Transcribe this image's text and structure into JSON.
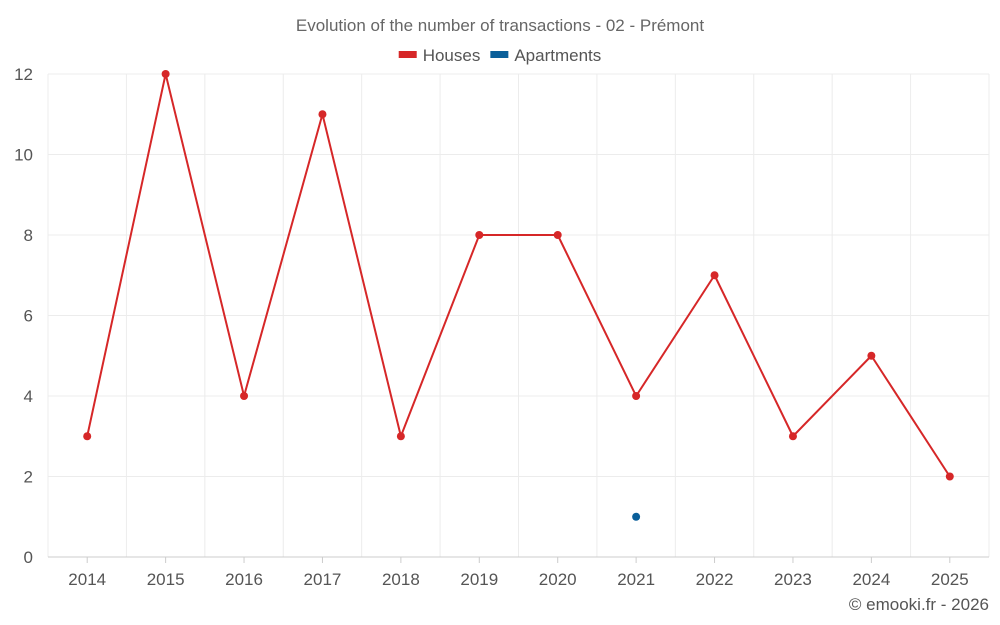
{
  "chart_data": {
    "type": "line",
    "title": "Evolution of the number of transactions - 02 - Prémont",
    "xlabel": "",
    "ylabel": "",
    "categories": [
      "2014",
      "2015",
      "2016",
      "2017",
      "2018",
      "2019",
      "2020",
      "2021",
      "2022",
      "2023",
      "2024",
      "2025"
    ],
    "ylim": [
      0,
      12
    ],
    "yticks": [
      0,
      2,
      4,
      6,
      8,
      10,
      12
    ],
    "grid": true,
    "legend_position": "top-center",
    "series": [
      {
        "name": "Houses",
        "color": "#d62728",
        "values": [
          3,
          12,
          4,
          11,
          3,
          8,
          8,
          4,
          7,
          3,
          5,
          2
        ]
      },
      {
        "name": "Apartments",
        "color": "#0a5f9a",
        "values": [
          null,
          null,
          null,
          null,
          null,
          null,
          null,
          1,
          null,
          null,
          null,
          null
        ]
      }
    ]
  },
  "credit": "© emooki.fr - 2026"
}
